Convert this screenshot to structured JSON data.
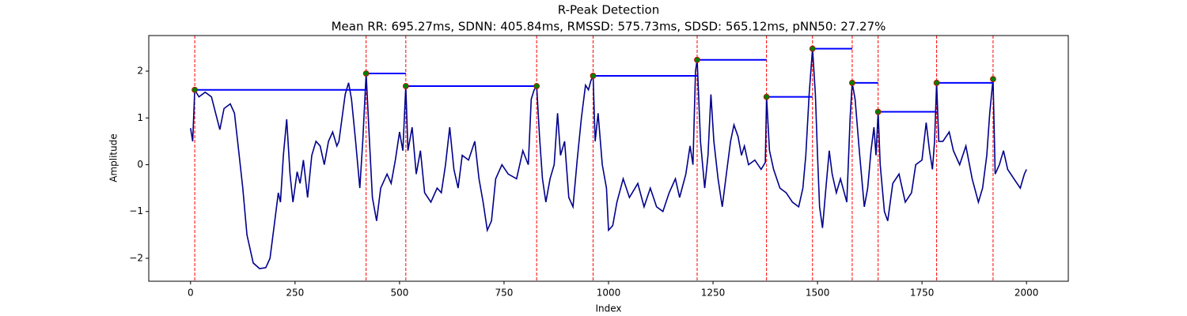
{
  "chart_data": {
    "type": "line",
    "title": "R-Peak Detection",
    "subtitle": "Mean RR: 695.27ms, SDNN: 405.84ms, RMSSD: 575.73ms, SDSD: 565.12ms, pNN50: 27.27%",
    "x_label": "Index",
    "y_label": "Amplitude",
    "xlim": [
      -100,
      2100
    ],
    "ylim": [
      -2.49,
      2.76
    ],
    "xticks": [
      0,
      250,
      500,
      750,
      1000,
      1250,
      1500,
      1750,
      2000
    ],
    "yticks": [
      {
        "value": -2,
        "label": "−2"
      },
      {
        "value": -1,
        "label": "−1"
      },
      0,
      1,
      2
    ],
    "signal": {
      "color": "#00008b",
      "x": [
        0,
        5,
        10,
        20,
        35,
        50,
        60,
        70,
        80,
        95,
        105,
        115,
        125,
        135,
        150,
        165,
        180,
        190,
        200,
        210,
        215,
        222,
        230,
        238,
        245,
        255,
        262,
        270,
        280,
        290,
        300,
        310,
        320,
        330,
        340,
        350,
        355,
        370,
        378,
        385,
        395,
        405,
        412,
        420,
        428,
        435,
        445,
        455,
        470,
        480,
        490,
        500,
        508,
        515,
        520,
        530,
        540,
        550,
        560,
        575,
        590,
        600,
        610,
        620,
        630,
        640,
        650,
        665,
        680,
        690,
        700,
        710,
        720,
        730,
        745,
        760,
        780,
        795,
        808,
        815,
        822,
        828,
        835,
        842,
        850,
        860,
        870,
        878,
        885,
        895,
        905,
        915,
        925,
        935,
        945,
        952,
        958,
        963,
        968,
        975,
        985,
        995,
        1000,
        1010,
        1020,
        1035,
        1050,
        1070,
        1085,
        1100,
        1115,
        1130,
        1145,
        1160,
        1170,
        1185,
        1195,
        1202,
        1208,
        1212,
        1220,
        1230,
        1238,
        1245,
        1252,
        1262,
        1272,
        1282,
        1292,
        1300,
        1310,
        1318,
        1325,
        1335,
        1350,
        1365,
        1375,
        1378,
        1385,
        1395,
        1410,
        1425,
        1440,
        1455,
        1465,
        1472,
        1480,
        1488,
        1495,
        1500,
        1505,
        1512,
        1520,
        1528,
        1535,
        1545,
        1555,
        1570,
        1578,
        1583,
        1590,
        1600,
        1612,
        1620,
        1628,
        1635,
        1640,
        1645,
        1650,
        1660,
        1668,
        1680,
        1695,
        1710,
        1725,
        1735,
        1750,
        1760,
        1768,
        1775,
        1780,
        1785,
        1790,
        1800,
        1815,
        1825,
        1840,
        1855,
        1870,
        1885,
        1895,
        1905,
        1912,
        1920,
        1925,
        1935,
        1945,
        1955,
        1970,
        1985,
        1995,
        2000
      ],
      "values": [
        0.78,
        0.5,
        1.6,
        1.45,
        1.55,
        1.45,
        1.1,
        0.75,
        1.2,
        1.3,
        1.1,
        0.3,
        -0.5,
        -1.5,
        -2.1,
        -2.22,
        -2.2,
        -2.0,
        -1.3,
        -0.6,
        -0.8,
        0.2,
        0.97,
        -0.2,
        -0.8,
        -0.15,
        -0.4,
        0.1,
        -0.7,
        0.2,
        0.5,
        0.4,
        0.0,
        0.5,
        0.7,
        0.4,
        0.5,
        1.5,
        1.75,
        1.4,
        0.5,
        -0.5,
        0.5,
        1.95,
        0.5,
        -0.7,
        -1.2,
        -0.5,
        -0.2,
        -0.4,
        0.1,
        0.7,
        0.3,
        1.68,
        0.3,
        0.8,
        -0.2,
        0.3,
        -0.6,
        -0.8,
        -0.5,
        -0.6,
        0.0,
        0.8,
        -0.1,
        -0.5,
        0.2,
        0.1,
        0.5,
        -0.3,
        -0.8,
        -1.4,
        -1.2,
        -0.3,
        0.0,
        -0.2,
        -0.3,
        0.3,
        0.0,
        1.4,
        1.6,
        1.68,
        0.6,
        -0.3,
        -0.8,
        -0.3,
        0.0,
        1.1,
        0.2,
        0.5,
        -0.7,
        -0.9,
        0.1,
        1.0,
        1.7,
        1.6,
        1.8,
        1.9,
        0.5,
        1.1,
        0.0,
        -0.5,
        -1.4,
        -1.3,
        -0.8,
        -0.3,
        -0.7,
        -0.4,
        -0.9,
        -0.5,
        -0.9,
        -1.0,
        -0.6,
        -0.3,
        -0.7,
        -0.2,
        0.4,
        0.0,
        2.0,
        2.24,
        0.5,
        -0.5,
        0.2,
        1.5,
        0.5,
        -0.3,
        -0.9,
        -0.2,
        0.5,
        0.85,
        0.6,
        0.2,
        0.4,
        0.0,
        0.1,
        -0.1,
        0.05,
        1.45,
        0.3,
        -0.1,
        -0.5,
        -0.6,
        -0.8,
        -0.9,
        -0.5,
        0.2,
        1.5,
        2.48,
        1.5,
        0.2,
        -0.9,
        -1.35,
        -0.5,
        0.3,
        -0.2,
        -0.6,
        -0.3,
        -0.8,
        1.0,
        1.75,
        1.4,
        0.3,
        -0.9,
        -0.5,
        0.3,
        0.8,
        0.2,
        1.13,
        0.0,
        -1.0,
        -1.2,
        -0.4,
        -0.2,
        -0.8,
        -0.6,
        0.0,
        0.1,
        0.9,
        0.3,
        -0.1,
        0.5,
        1.75,
        0.5,
        0.5,
        0.7,
        0.3,
        0.0,
        0.4,
        -0.3,
        -0.8,
        -0.5,
        0.2,
        1.1,
        1.83,
        -0.2,
        0.0,
        0.3,
        -0.1,
        -0.3,
        -0.5,
        -0.2,
        -0.1
      ]
    },
    "peaks": {
      "color": "#008000",
      "edge_color": "#e00000",
      "x": [
        10,
        420,
        515,
        828,
        963,
        1212,
        1378,
        1488,
        1583,
        1645,
        1785,
        1920
      ],
      "values": [
        1.6,
        1.95,
        1.68,
        1.68,
        1.9,
        2.24,
        1.45,
        2.48,
        1.75,
        1.13,
        1.75,
        1.83
      ]
    },
    "peak_lines": {
      "color": "#ff0000"
    },
    "rr_lines": {
      "color": "#0000ff",
      "x_start": [
        10,
        420,
        515,
        963,
        1212,
        1378,
        1488,
        1583,
        1645,
        1785
      ],
      "x_end": [
        420,
        515,
        828,
        1212,
        1378,
        1488,
        1583,
        1645,
        1785,
        1920
      ],
      "values": [
        1.6,
        1.95,
        1.68,
        1.9,
        2.24,
        1.45,
        2.48,
        1.75,
        1.13,
        1.75
      ]
    }
  }
}
